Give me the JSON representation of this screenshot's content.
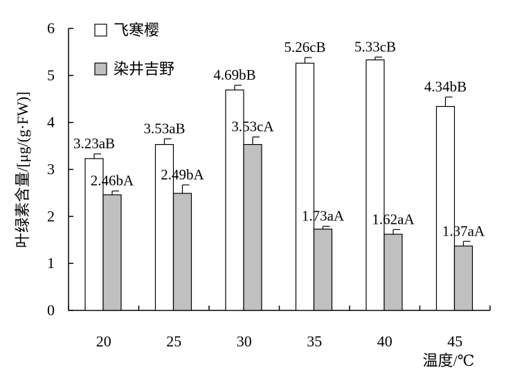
{
  "chart_data": {
    "type": "bar",
    "title": "",
    "xlabel": "温度/℃",
    "ylabel": "叶绿素含量/[μg/(g·FW)]",
    "ylim": [
      0,
      6
    ],
    "yticks": [
      0,
      1,
      2,
      3,
      4,
      5,
      6
    ],
    "categories": [
      "20",
      "25",
      "30",
      "35",
      "40",
      "45"
    ],
    "legend_position": "top-left",
    "grid": false,
    "series": [
      {
        "name": "飞寒樱",
        "color": "#ffffff",
        "values": [
          3.23,
          3.53,
          4.69,
          5.26,
          5.33,
          4.34
        ],
        "errors": [
          0.1,
          0.12,
          0.1,
          0.12,
          0.06,
          0.2
        ],
        "labels": [
          "3.23aB",
          "3.53aB",
          "4.69bB",
          "5.26cB",
          "5.33cB",
          "4.34bB"
        ]
      },
      {
        "name": "染井吉野",
        "color": "#c0c0c0",
        "values": [
          2.46,
          2.49,
          3.53,
          1.73,
          1.62,
          1.37
        ],
        "errors": [
          0.08,
          0.18,
          0.16,
          0.06,
          0.1,
          0.1
        ],
        "labels": [
          "2.46bA",
          "2.49bA",
          "3.53cA",
          "1.73aA",
          "1.62aA",
          "1.37aA"
        ]
      }
    ]
  }
}
